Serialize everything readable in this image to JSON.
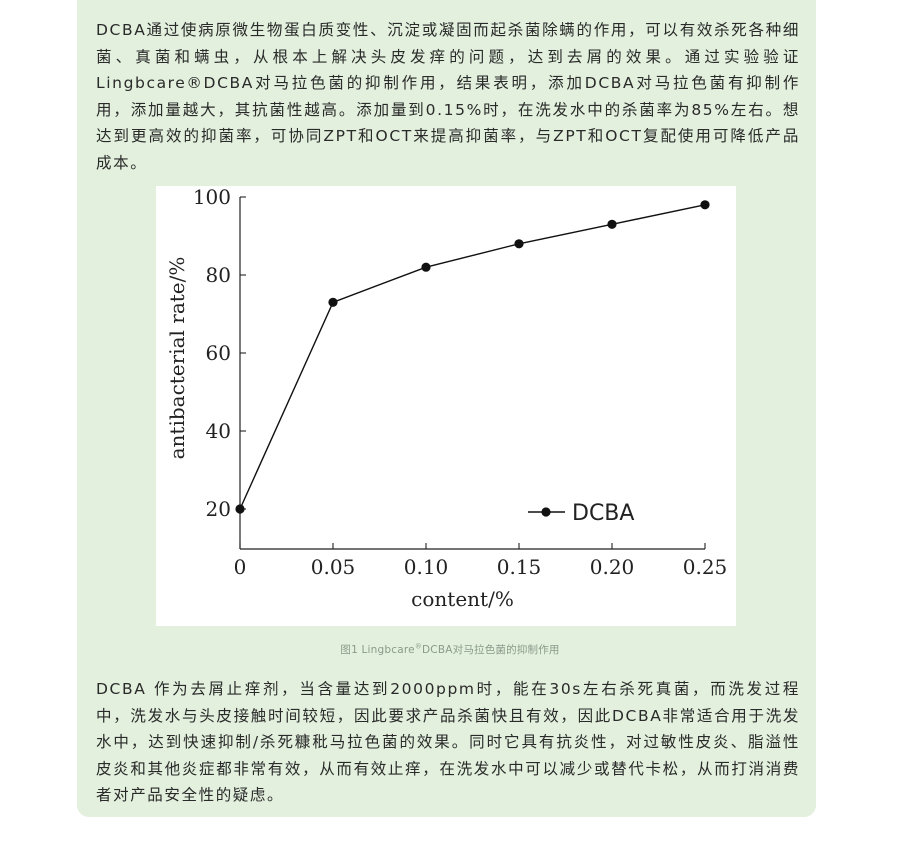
{
  "article": {
    "paragraph_1": "DCBA通过使病原微生物蛋白质变性、沉淀或凝固而起杀菌除螨的作用，可以有效杀死各种细菌、真菌和螨虫，从根本上解决头皮发痒的问题，达到去屑的效果。通过实验验证Lingbcare®DCBA对马拉色菌的抑制作用，结果表明，添加DCBA对马拉色菌有抑制作用，添加量越大，其抗菌性越高。添加量到0.15%时，在洗发水中的杀菌率为85%左右。想达到更高效的抑菌率，可协同ZPT和OCT来提高抑菌率，与ZPT和OCT复配使用可降低产品成本。",
    "caption_prefix": "图1 Lingbcare",
    "caption_reg": "®",
    "caption_suffix": "DCBA对马拉色菌的抑制作用",
    "paragraph_2": "DCBA 作为去屑止痒剂，当含量达到2000ppm时，能在30s左右杀死真菌，而洗发过程中，洗发水与头皮接触时间较短，因此要求产品杀菌快且有效，因此DCBA非常适合用于洗发水中，达到快速抑制/杀死糠秕马拉色菌的效果。同时它具有抗炎性，对过敏性皮炎、脂溢性皮炎和其他炎症都非常有效，从而有效止痒，在洗发水中可以减少或替代卡松，从而打消消费者对产品安全性的疑虑。"
  },
  "colors": {
    "card_background": "#e2f0dd",
    "series_color": "#111111"
  },
  "chart_data": {
    "type": "line",
    "xlabel": "content/%",
    "ylabel": "antibacterial rate/%",
    "x_ticks": [
      "0",
      "0.05",
      "0.10",
      "0.15",
      "0.20",
      "0.25"
    ],
    "y_ticks": [
      "20",
      "40",
      "60",
      "80",
      "100"
    ],
    "xlim": [
      0,
      0.25
    ],
    "ylim": [
      20,
      100
    ],
    "grid": false,
    "legend_position": "bottom-right",
    "series": [
      {
        "name": "DCBA",
        "x": [
          0,
          0.05,
          0.1,
          0.15,
          0.2,
          0.25
        ],
        "y": [
          20,
          73,
          82,
          88,
          93,
          98
        ]
      }
    ]
  }
}
